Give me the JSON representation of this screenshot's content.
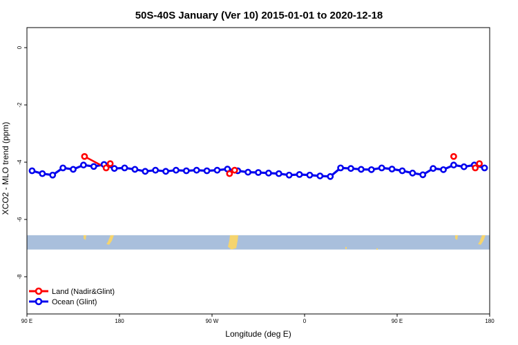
{
  "chart_data": {
    "type": "line",
    "title": "50S-40S January (Ver 10)   2015-01-01 to 2020-12-18",
    "xlabel": "Longitude (deg E)",
    "ylabel": "XCO2 - MLO trend (ppm)",
    "x_ticks": [
      {
        "value": 90,
        "label": "90 E"
      },
      {
        "value": 180,
        "label": "180"
      },
      {
        "value": 270,
        "label": "90 W"
      },
      {
        "value": 360,
        "label": "0"
      },
      {
        "value": 450,
        "label": "90 E"
      },
      {
        "value": 540,
        "label": "180"
      }
    ],
    "y_ticks": [
      0,
      -2,
      -4,
      -6,
      -8
    ],
    "xlim": [
      90,
      540
    ],
    "ylim": [
      -9.3,
      0.7
    ],
    "grid": false,
    "legend_position": "bottom-left",
    "land_band": {
      "y_range": [
        -6.55,
        -7.05
      ],
      "ocean_color": "#a9bfdc",
      "land_color": "#f5d46e"
    },
    "series": [
      {
        "name": "Land (Nadir&Glint)",
        "color": "#ff0000",
        "segments": [
          [
            [
              146,
              -3.8
            ],
            [
              167,
              -4.2
            ]
          ],
          [
            [
              171,
              -4.05
            ]
          ],
          [
            [
              287,
              -4.4
            ],
            [
              292,
              -4.28
            ]
          ],
          [
            [
              505,
              -3.8
            ]
          ],
          [
            [
              526,
              -4.2
            ],
            [
              530,
              -4.05
            ]
          ]
        ]
      },
      {
        "name": "Ocean (Glint)",
        "color": "#0000ee",
        "x": [
          95,
          105,
          115,
          125,
          135,
          145,
          155,
          165,
          175,
          185,
          195,
          205,
          215,
          225,
          235,
          245,
          255,
          265,
          275,
          285,
          295,
          305,
          315,
          325,
          335,
          345,
          355,
          365,
          375,
          385,
          395,
          405,
          415,
          425,
          435,
          445,
          455,
          465,
          475,
          485,
          495,
          505,
          515,
          525,
          535
        ],
        "y": [
          -4.3,
          -4.4,
          -4.45,
          -4.2,
          -4.25,
          -4.1,
          -4.15,
          -4.08,
          -4.22,
          -4.2,
          -4.25,
          -4.32,
          -4.28,
          -4.32,
          -4.28,
          -4.3,
          -4.28,
          -4.3,
          -4.28,
          -4.24,
          -4.3,
          -4.35,
          -4.36,
          -4.38,
          -4.4,
          -4.45,
          -4.43,
          -4.45,
          -4.48,
          -4.5,
          -4.2,
          -4.22,
          -4.25,
          -4.26,
          -4.2,
          -4.24,
          -4.3,
          -4.38,
          -4.44,
          -4.22,
          -4.26,
          -4.1,
          -4.16,
          -4.1,
          -4.2
        ]
      }
    ]
  }
}
